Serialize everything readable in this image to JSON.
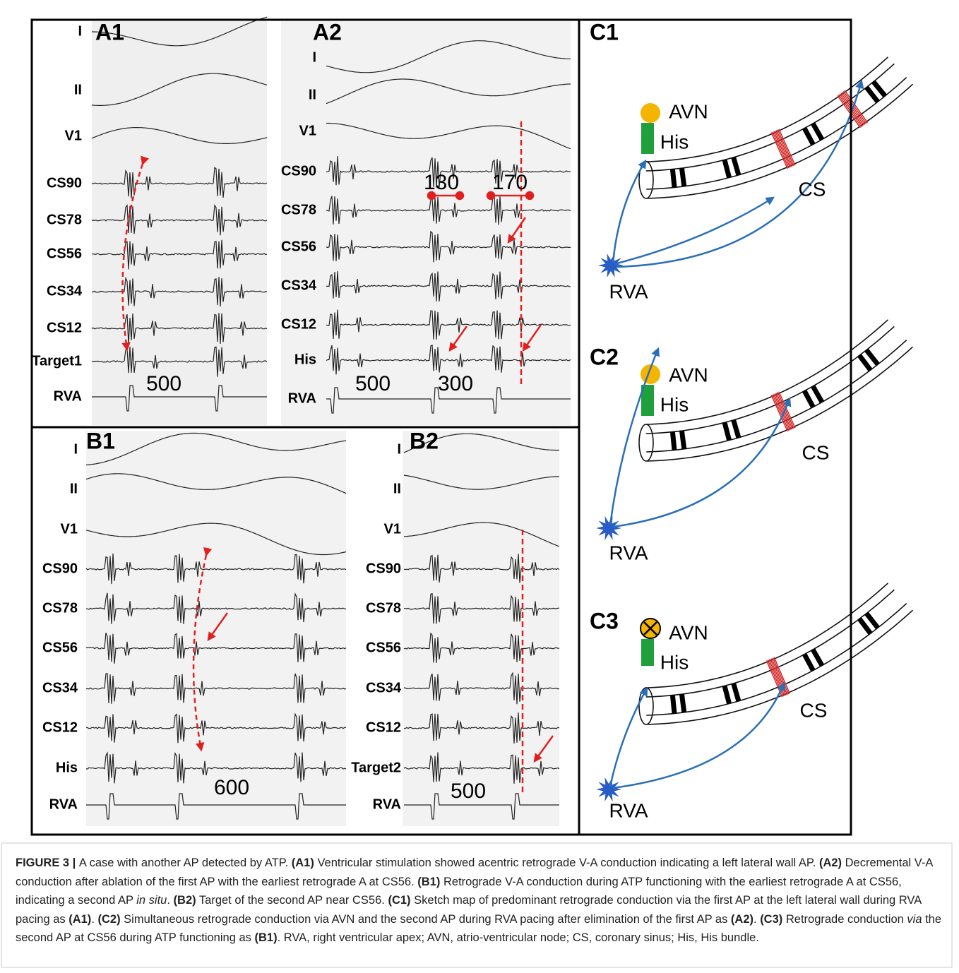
{
  "figure": {
    "ecg_panels": [
      {
        "label": "A1",
        "leads": [
          "I",
          "II",
          "V1",
          "CS90",
          "CS78",
          "CS56",
          "CS34",
          "CS12",
          "Target1",
          "RVA"
        ],
        "interval_labels": [
          "500"
        ]
      },
      {
        "label": "A2",
        "leads": [
          "I",
          "II",
          "V1",
          "CS90",
          "CS78",
          "CS56",
          "CS34",
          "CS12",
          "His",
          "RVA"
        ],
        "interval_labels": [
          "500",
          "300",
          "130",
          "170"
        ]
      },
      {
        "label": "B1",
        "leads": [
          "I",
          "II",
          "V1",
          "CS90",
          "CS78",
          "CS56",
          "CS34",
          "CS12",
          "His",
          "RVA"
        ],
        "interval_labels": [
          "600"
        ]
      },
      {
        "label": "B2",
        "leads": [
          "I",
          "II",
          "V1",
          "CS90",
          "CS78",
          "CS56",
          "CS34",
          "CS12",
          "Target2",
          "RVA"
        ],
        "interval_labels": [
          "500"
        ]
      }
    ],
    "diagram_panels": [
      {
        "label": "C1",
        "avn": "AVN",
        "his": "His",
        "cs": "CS",
        "rva": "RVA"
      },
      {
        "label": "C2",
        "avn": "AVN",
        "his": "His",
        "cs": "CS",
        "rva": "RVA"
      },
      {
        "label": "C3",
        "avn": "AVN",
        "his": "His",
        "cs": "CS",
        "rva": "RVA"
      }
    ],
    "caption": [
      {
        "text": "FIGURE 3 | ",
        "style": "bold"
      },
      {
        "text": "A case with another AP detected by ATP. ",
        "style": "normal"
      },
      {
        "text": "(A1)",
        "style": "bold"
      },
      {
        "text": " Ventricular stimulation showed acentric retrograde V-A conduction indicating a left lateral wall AP. ",
        "style": "normal"
      },
      {
        "text": "(A2)",
        "style": "bold"
      },
      {
        "text": " Decremental V-A conduction after ablation of the first AP with the earliest retrograde A at CS56. ",
        "style": "normal"
      },
      {
        "text": "(B1)",
        "style": "bold"
      },
      {
        "text": " Retrograde V-A conduction during ATP functioning with the earliest retrograde A at CS56, indicating a second AP ",
        "style": "normal"
      },
      {
        "text": "in situ",
        "style": "italic"
      },
      {
        "text": ". ",
        "style": "normal"
      },
      {
        "text": "(B2)",
        "style": "bold"
      },
      {
        "text": " Target of the second AP near CS56. ",
        "style": "normal"
      },
      {
        "text": "(C1)",
        "style": "bold"
      },
      {
        "text": " Sketch map of predominant retrograde conduction via the first AP at the left lateral wall during RVA pacing as ",
        "style": "normal"
      },
      {
        "text": "(A1)",
        "style": "bold"
      },
      {
        "text": ". ",
        "style": "normal"
      },
      {
        "text": "(C2)",
        "style": "bold"
      },
      {
        "text": " Simultaneous retrograde conduction via AVN and the second AP during RVA pacing after elimination of the first AP as ",
        "style": "normal"
      },
      {
        "text": "(A2)",
        "style": "bold"
      },
      {
        "text": ". ",
        "style": "normal"
      },
      {
        "text": "(C3)",
        "style": "bold"
      },
      {
        "text": " Retrograde conduction ",
        "style": "normal"
      },
      {
        "text": "via",
        "style": "italic"
      },
      {
        "text": " the second AP at CS56 during ATP functioning as ",
        "style": "normal"
      },
      {
        "text": "(B1)",
        "style": "bold"
      },
      {
        "text": ". RVA, right ventricular apex; AVN, atrio-ventricular node; CS, coronary sinus; His, His bundle.",
        "style": "normal"
      }
    ]
  }
}
